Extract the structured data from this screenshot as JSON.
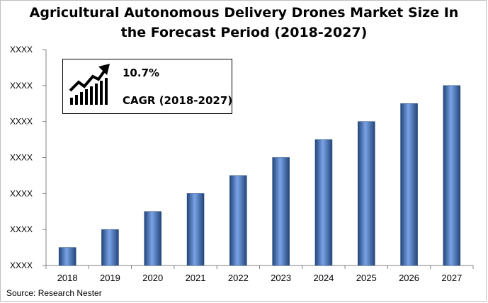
{
  "chart_data": {
    "type": "bar",
    "title_lines": [
      "Agricultural Autonomous Delivery Drones Market Size In",
      "the Forecast Period (2018-2027)"
    ],
    "categories": [
      "2018",
      "2019",
      "2020",
      "2021",
      "2022",
      "2023",
      "2024",
      "2025",
      "2026",
      "2027"
    ],
    "values": [
      0.5,
      1.0,
      1.5,
      2.0,
      2.5,
      3.0,
      3.5,
      4.0,
      4.5,
      5.0
    ],
    "ylim": [
      0,
      6
    ],
    "y_tick_labels": [
      "XXXX",
      "XXXX",
      "XXXX",
      "XXXX",
      "XXXX",
      "XXXX",
      "XXXX"
    ],
    "grid": false,
    "legend": "none",
    "bar_color": "#4472c4",
    "bar_highlight_color": "#7aa3e6",
    "bar_shadow_color": "#23457a"
  },
  "cagr_callout": {
    "value": "10.7%",
    "label": "CAGR (2018-2027)",
    "icon": "growth-chart-icon"
  },
  "source": "Source: Research Nester"
}
